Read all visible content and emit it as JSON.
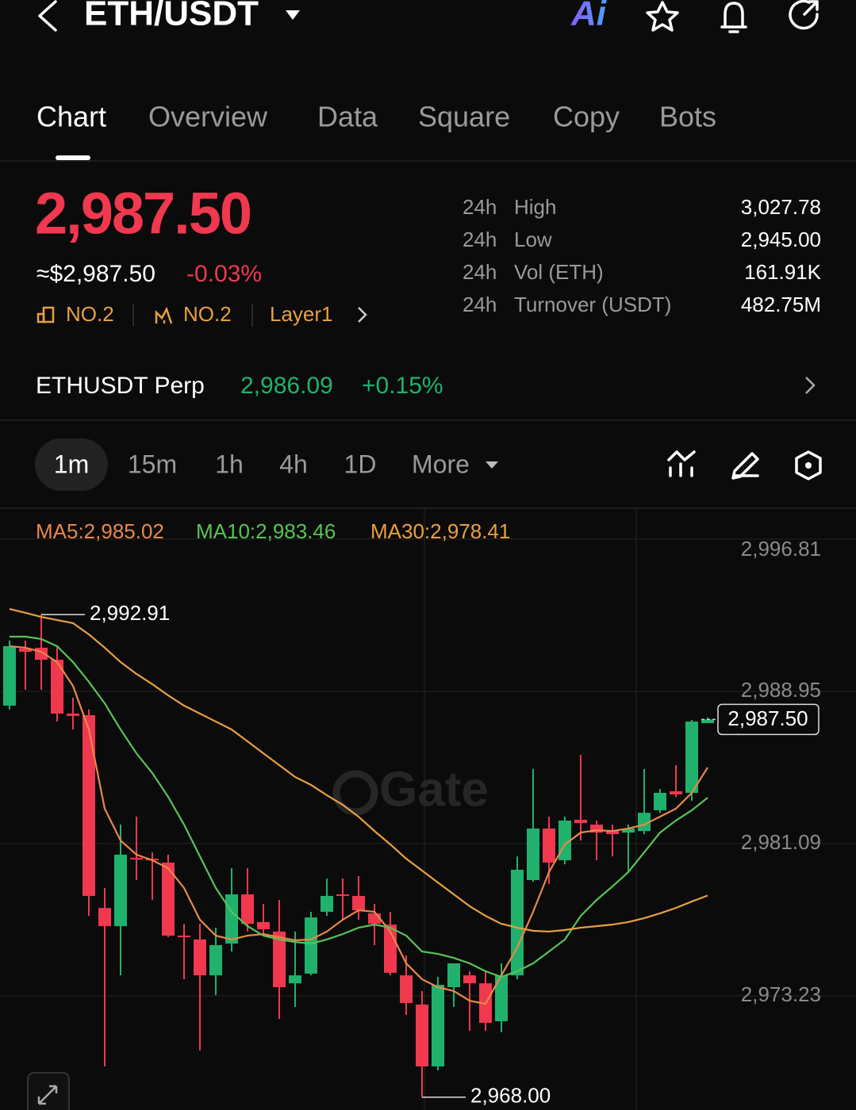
{
  "header": {
    "title": "ETH/USDT",
    "ai_badge": "Ai"
  },
  "tabs": {
    "items": [
      "Chart",
      "Overview",
      "Data",
      "Square",
      "Copy",
      "Bots"
    ],
    "active": 0
  },
  "price": {
    "last": "2,987.50",
    "fiat": "≈$2,987.50",
    "change": "-0.03%",
    "tags": [
      "NO.2",
      "NO.2",
      "Layer1"
    ]
  },
  "stats": {
    "rows": [
      [
        "24h",
        "High",
        "3,027.78"
      ],
      [
        "24h",
        "Low",
        "2,945.00"
      ],
      [
        "24h",
        "Vol (ETH)",
        "161.91K"
      ],
      [
        "24h",
        "Turnover (USDT)",
        "482.75M"
      ]
    ]
  },
  "perp": {
    "name": "ETHUSDT Perp",
    "price": "2,986.09",
    "change": "+0.15%"
  },
  "intervals": {
    "items": [
      "1m",
      "15m",
      "1h",
      "4h",
      "1D",
      "More"
    ],
    "active": 0
  },
  "chart_data": {
    "type": "candlestick",
    "watermark": "Gate",
    "up_color": "#20b26c",
    "down_color": "#f0384f",
    "ylim": [
      2967.34,
      2998.36
    ],
    "yticks": [
      {
        "value": 2996.81,
        "label": "2,996.81"
      },
      {
        "value": 2988.95,
        "label": "2,988.95"
      },
      {
        "value": 2981.09,
        "label": "2,981.09"
      },
      {
        "value": 2973.23,
        "label": "2,973.23"
      }
    ],
    "grid": true,
    "open": [
      2988.21,
      2991.16,
      2991.2,
      2990.58,
      2987.8,
      2987.72,
      2977.77,
      2976.83,
      2980.35,
      2980.31,
      2980.11,
      2976.34,
      2976.14,
      2974.29,
      2975.93,
      2978.47,
      2977.04,
      2976.55,
      2973.88,
      2974.38,
      2977.57,
      2978.47,
      2978.39,
      2977.49,
      2976.91,
      2974.29,
      2972.78,
      2969.59,
      2973.68,
      2974.29,
      2973.88,
      2971.92,
      2974.29,
      2979.21,
      2981.87,
      2980.23,
      2982.32,
      2982.07,
      2981.74,
      2981.66,
      2981.74,
      2982.81,
      2983.79,
      2983.71,
      2987.31
    ],
    "high": [
      2991.57,
      2991.57,
      2992.91,
      2991.28,
      2988.62,
      2988.01,
      2978.8,
      2982.07,
      2982.48,
      2980.64,
      2980.52,
      2976.95,
      2976.95,
      2976.75,
      2979.82,
      2979.82,
      2977.98,
      2978.18,
      2976.55,
      2977.57,
      2979.29,
      2979.29,
      2979.41,
      2977.98,
      2977.57,
      2975.32,
      2973.48,
      2974.21,
      2974.91,
      2974.5,
      2974.5,
      2974.91,
      2980.43,
      2984.94,
      2982.48,
      2982.48,
      2985.67,
      2982.28,
      2982.07,
      2982.07,
      2984.94,
      2983.91,
      2985.14,
      2987.47,
      2987.6
    ],
    "low": [
      2988.01,
      2989.03,
      2989.03,
      2987.39,
      2986.98,
      2977.36,
      2969.59,
      2974.29,
      2979.21,
      2978.18,
      2976.26,
      2974.09,
      2970.41,
      2973.27,
      2975.52,
      2976.55,
      2976.42,
      2972.04,
      2972.66,
      2974.29,
      2977.36,
      2977.16,
      2977.16,
      2975.85,
      2974.29,
      2972.25,
      2968.0,
      2969.38,
      2972.66,
      2971.43,
      2971.43,
      2971.35,
      2974.09,
      2979.12,
      2979.0,
      2980.02,
      2981.25,
      2980.23,
      2980.43,
      2979.62,
      2981.58,
      2982.68,
      2983.5,
      2983.3,
      2987.31
    ],
    "close": [
      2991.28,
      2990.99,
      2990.58,
      2987.8,
      2987.68,
      2978.39,
      2976.83,
      2980.52,
      2980.31,
      2980.23,
      2976.34,
      2976.26,
      2974.29,
      2975.85,
      2978.47,
      2976.95,
      2976.67,
      2973.68,
      2974.29,
      2977.28,
      2978.39,
      2978.39,
      2977.65,
      2976.95,
      2974.42,
      2972.86,
      2969.59,
      2973.8,
      2974.91,
      2973.88,
      2971.84,
      2974.29,
      2979.74,
      2981.87,
      2980.11,
      2982.28,
      2982.15,
      2981.66,
      2981.58,
      2981.87,
      2982.68,
      2983.71,
      2983.63,
      2987.39,
      2987.5
    ],
    "series": [
      {
        "name": "MA5:2,985.02",
        "color": "#e8884a",
        "values": [
          2991.28,
          2991.2,
          2990.99,
          2990.46,
          2989.23,
          2986.98,
          2982.89,
          2981.25,
          2980.52,
          2980.23,
          2979.82,
          2978.8,
          2977.16,
          2976.34,
          2976.14,
          2976.34,
          2976.42,
          2976.26,
          2976.1,
          2976.14,
          2976.55,
          2977.16,
          2977.65,
          2977.57,
          2976.55,
          2974.91,
          2974.09,
          2973.68,
          2973.48,
          2972.98,
          2972.82,
          2974.29,
          2975.73,
          2977.57,
          2979.62,
          2981.05,
          2981.66,
          2981.78,
          2981.74,
          2981.87,
          2982.07,
          2982.48,
          2982.89,
          2983.71,
          2985.02
        ]
      },
      {
        "name": "MA10:2,983.46",
        "color": "#56c456",
        "values": [
          2991.77,
          2991.77,
          2991.65,
          2991.28,
          2990.46,
          2989.44,
          2988.33,
          2986.98,
          2985.75,
          2984.73,
          2983.5,
          2982.07,
          2980.43,
          2978.8,
          2977.57,
          2976.83,
          2976.34,
          2976.14,
          2976.01,
          2975.93,
          2976.14,
          2976.42,
          2976.75,
          2976.91,
          2976.75,
          2976.34,
          2975.52,
          2975.4,
          2975.19,
          2974.91,
          2974.5,
          2974.21,
          2974.5,
          2974.91,
          2975.52,
          2976.14,
          2977.36,
          2978.18,
          2978.88,
          2979.62,
          2980.64,
          2981.66,
          2982.28,
          2982.81,
          2983.46
        ]
      },
      {
        "name": "MA30:2,978.41",
        "color": "#e8a040",
        "values": [
          2993.2,
          2993.0,
          2992.79,
          2992.63,
          2992.47,
          2991.89,
          2991.2,
          2990.46,
          2989.85,
          2989.32,
          2988.74,
          2988.21,
          2987.8,
          2987.39,
          2986.98,
          2986.37,
          2985.75,
          2985.14,
          2984.53,
          2984.12,
          2983.59,
          2983.09,
          2982.48,
          2981.74,
          2981.05,
          2980.31,
          2979.7,
          2979.08,
          2978.47,
          2977.86,
          2977.36,
          2976.95,
          2976.75,
          2976.59,
          2976.55,
          2976.63,
          2976.75,
          2976.83,
          2976.91,
          2977.04,
          2977.24,
          2977.49,
          2977.77,
          2978.1,
          2978.41
        ]
      }
    ],
    "high_label": {
      "value": 2992.91,
      "label": "2,992.91"
    },
    "low_label": {
      "value": 2968.0,
      "label": "2,968.00"
    },
    "last_price": {
      "value": 2987.5,
      "label": "2,987.50"
    }
  }
}
